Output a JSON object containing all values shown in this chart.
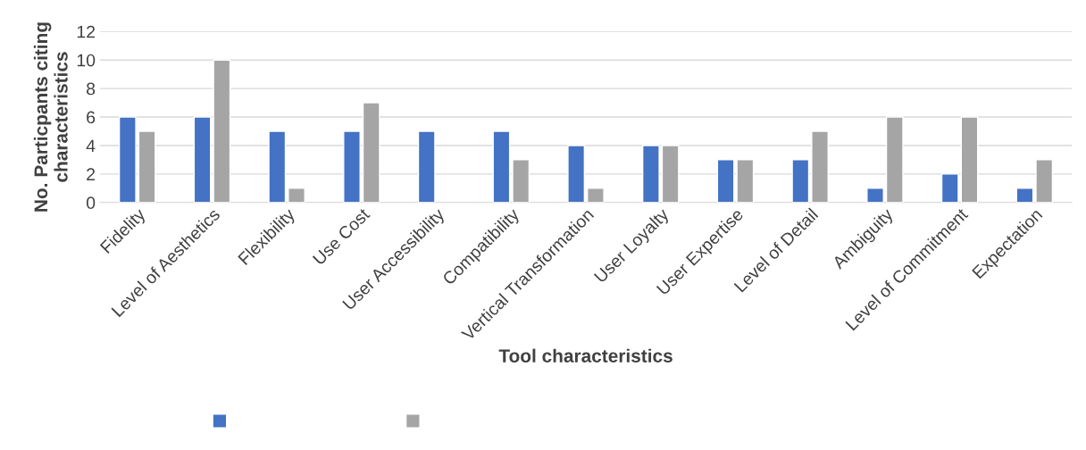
{
  "chart_data": {
    "type": "bar",
    "xlabel": "Tool characteristics",
    "ylabel": "No. Particpants citing characteristics",
    "categories": [
      "Fidelity",
      "Level of Aesthetics",
      "Flexibility",
      "Use Cost",
      "User Accessibility",
      "Compatibility",
      "Vertical Transformation",
      "User Loyalty",
      "User Expertise",
      "Level of Detail",
      "Ambiguity",
      "Level of Commitment",
      "Expectation"
    ],
    "series": [
      {
        "color": "#4472c4",
        "values": [
          6,
          6,
          5,
          5,
          5,
          5,
          4,
          4,
          3,
          3,
          1,
          2,
          1
        ]
      },
      {
        "color": "#a5a5a5",
        "values": [
          5,
          10,
          1,
          7,
          null,
          3,
          1,
          4,
          3,
          5,
          6,
          6,
          3
        ]
      }
    ],
    "ylim": [
      0,
      12
    ],
    "yticks": [
      0,
      2,
      4,
      6,
      8,
      10,
      12
    ],
    "grid": "y"
  }
}
